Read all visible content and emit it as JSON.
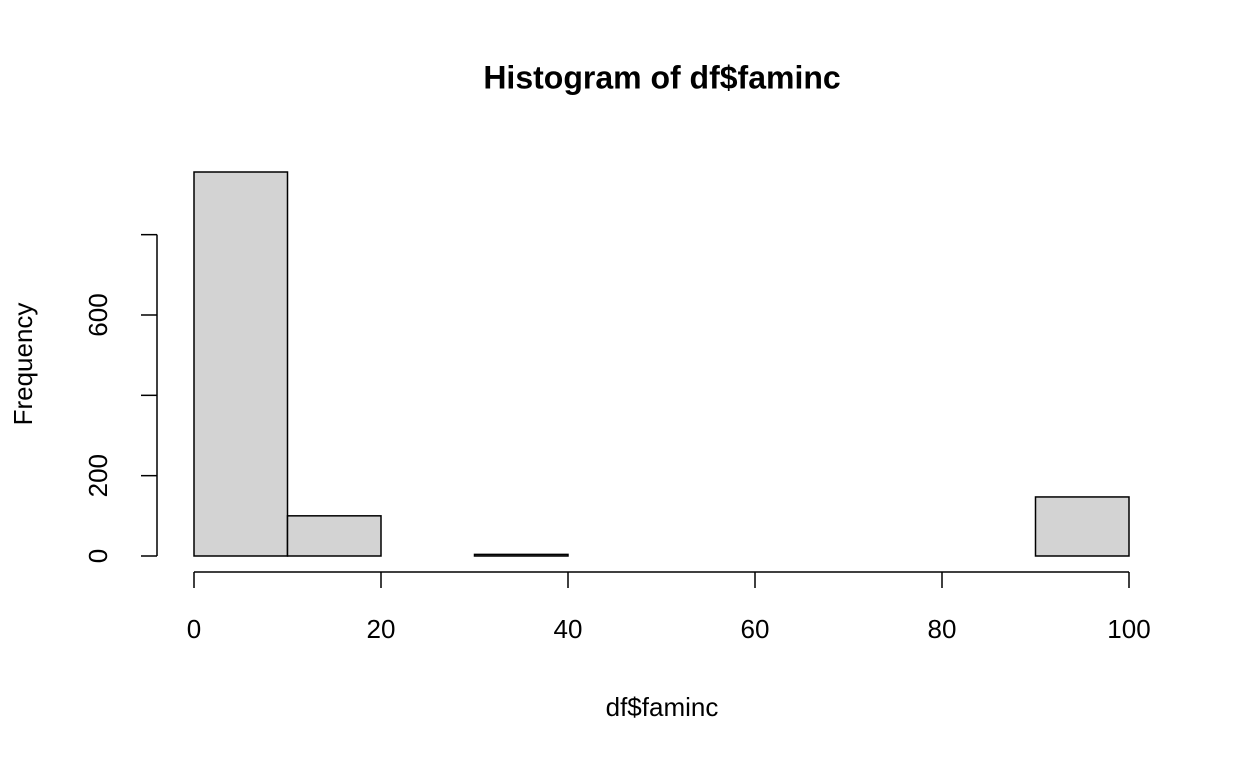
{
  "chart_data": {
    "type": "histogram",
    "title": "Histogram of df$faminc",
    "xlabel": "df$faminc",
    "ylabel": "Frequency",
    "bins": [
      0,
      10,
      20,
      30,
      40,
      50,
      60,
      70,
      80,
      90,
      100
    ],
    "values": [
      956,
      100,
      0,
      4,
      0,
      0,
      0,
      0,
      0,
      147
    ],
    "color": "#d3d3d3",
    "xlim": [
      0,
      100
    ],
    "xticks": [
      0,
      20,
      40,
      60,
      80,
      100
    ],
    "ylim": [
      0,
      956
    ],
    "yticks": [
      0,
      200,
      600
    ],
    "yticks_unlabeled": [
      400,
      800
    ]
  }
}
